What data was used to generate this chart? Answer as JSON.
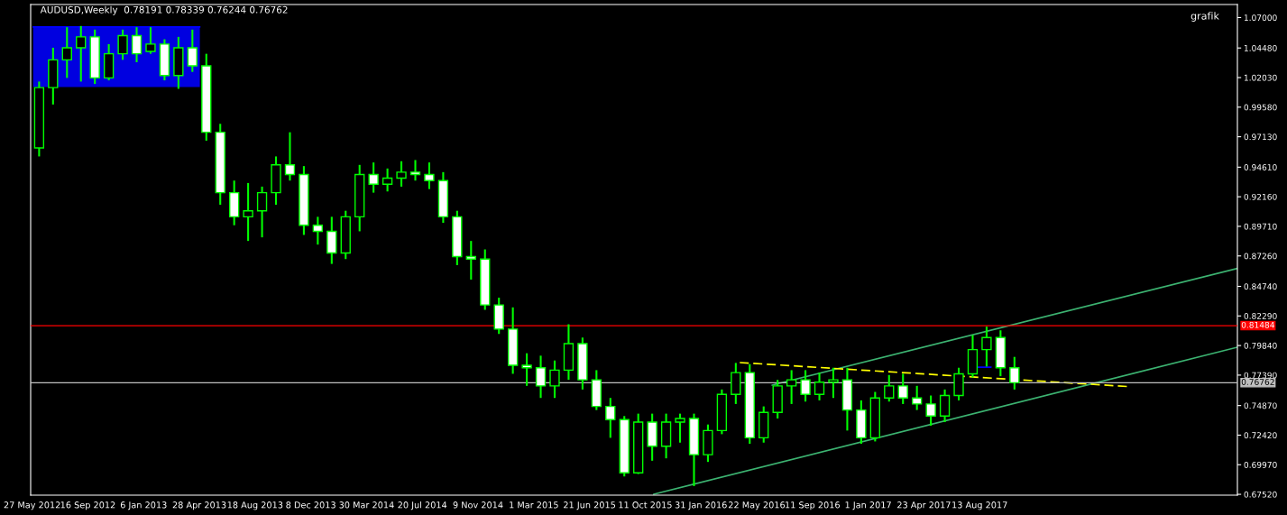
{
  "chart_data": {
    "type": "candlestick",
    "title": "AUDUSD,Weekly  0.78191 0.78339 0.76244 0.76762",
    "annotations": [
      "grafik"
    ],
    "color": "#00ff00",
    "x": [
      "2012-06-10",
      "2012-07-08",
      "2012-08-05",
      "2012-09-02",
      "2012-09-30",
      "2012-10-28",
      "2012-11-25",
      "2012-12-23",
      "2013-01-20",
      "2013-02-17",
      "2013-03-17",
      "2013-04-14",
      "2013-05-12",
      "2013-06-09",
      "2013-07-07",
      "2013-08-04",
      "2013-09-01",
      "2013-09-29",
      "2013-10-27",
      "2013-11-24",
      "2013-12-22",
      "2014-01-19",
      "2014-02-16",
      "2014-03-16",
      "2014-04-13",
      "2014-05-11",
      "2014-06-08",
      "2014-07-06",
      "2014-08-03",
      "2014-08-31",
      "2014-09-28",
      "2014-10-26",
      "2014-11-23",
      "2014-12-21",
      "2015-01-18",
      "2015-02-15",
      "2015-03-15",
      "2015-04-12",
      "2015-05-10",
      "2015-06-07",
      "2015-07-05",
      "2015-08-02",
      "2015-08-30",
      "2015-09-27",
      "2015-10-25",
      "2015-11-22",
      "2015-12-20",
      "2016-01-17",
      "2016-02-14",
      "2016-03-13",
      "2016-04-10",
      "2016-05-08",
      "2016-06-05",
      "2016-07-03",
      "2016-07-31",
      "2016-08-28",
      "2016-09-25",
      "2016-10-23",
      "2016-11-20",
      "2016-12-18",
      "2017-01-15",
      "2017-02-12",
      "2017-03-12",
      "2017-04-09",
      "2017-05-07",
      "2017-06-04",
      "2017-07-02",
      "2017-07-30",
      "2017-08-27",
      "2017-09-24",
      "2017-10-22"
    ],
    "ohlc": [
      [
        0.962,
        1.017,
        0.955,
        1.012
      ],
      [
        1.012,
        1.045,
        0.998,
        1.035
      ],
      [
        1.035,
        1.062,
        1.02,
        1.045
      ],
      [
        1.045,
        1.063,
        1.017,
        1.054
      ],
      [
        1.054,
        1.06,
        1.015,
        1.02
      ],
      [
        1.02,
        1.048,
        1.018,
        1.04
      ],
      [
        1.04,
        1.06,
        1.035,
        1.055
      ],
      [
        1.055,
        1.062,
        1.033,
        1.04
      ],
      [
        1.042,
        1.062,
        1.04,
        1.048
      ],
      [
        1.048,
        1.052,
        1.018,
        1.022
      ],
      [
        1.022,
        1.054,
        1.011,
        1.045
      ],
      [
        1.045,
        1.06,
        1.025,
        1.03
      ],
      [
        1.03,
        1.04,
        0.968,
        0.975
      ],
      [
        0.975,
        0.982,
        0.915,
        0.925
      ],
      [
        0.925,
        0.935,
        0.898,
        0.905
      ],
      [
        0.905,
        0.933,
        0.885,
        0.91
      ],
      [
        0.91,
        0.93,
        0.888,
        0.925
      ],
      [
        0.925,
        0.955,
        0.915,
        0.948
      ],
      [
        0.948,
        0.975,
        0.935,
        0.94
      ],
      [
        0.94,
        0.947,
        0.89,
        0.898
      ],
      [
        0.898,
        0.905,
        0.882,
        0.893
      ],
      [
        0.893,
        0.905,
        0.866,
        0.875
      ],
      [
        0.875,
        0.91,
        0.87,
        0.905
      ],
      [
        0.905,
        0.948,
        0.893,
        0.94
      ],
      [
        0.94,
        0.95,
        0.925,
        0.932
      ],
      [
        0.932,
        0.945,
        0.926,
        0.937
      ],
      [
        0.937,
        0.951,
        0.93,
        0.942
      ],
      [
        0.942,
        0.952,
        0.935,
        0.94
      ],
      [
        0.94,
        0.95,
        0.928,
        0.935
      ],
      [
        0.935,
        0.942,
        0.9,
        0.905
      ],
      [
        0.905,
        0.91,
        0.865,
        0.872
      ],
      [
        0.872,
        0.885,
        0.853,
        0.87
      ],
      [
        0.87,
        0.878,
        0.828,
        0.832
      ],
      [
        0.832,
        0.838,
        0.808,
        0.812
      ],
      [
        0.812,
        0.83,
        0.775,
        0.782
      ],
      [
        0.782,
        0.792,
        0.765,
        0.78
      ],
      [
        0.78,
        0.79,
        0.755,
        0.765
      ],
      [
        0.765,
        0.786,
        0.755,
        0.778
      ],
      [
        0.778,
        0.816,
        0.77,
        0.8
      ],
      [
        0.8,
        0.805,
        0.762,
        0.77
      ],
      [
        0.77,
        0.778,
        0.745,
        0.748
      ],
      [
        0.748,
        0.755,
        0.722,
        0.737
      ],
      [
        0.737,
        0.74,
        0.69,
        0.693
      ],
      [
        0.693,
        0.742,
        0.692,
        0.735
      ],
      [
        0.735,
        0.742,
        0.703,
        0.715
      ],
      [
        0.715,
        0.742,
        0.705,
        0.735
      ],
      [
        0.735,
        0.742,
        0.718,
        0.738
      ],
      [
        0.738,
        0.742,
        0.682,
        0.708
      ],
      [
        0.708,
        0.733,
        0.702,
        0.728
      ],
      [
        0.728,
        0.762,
        0.725,
        0.758
      ],
      [
        0.758,
        0.784,
        0.75,
        0.776
      ],
      [
        0.776,
        0.783,
        0.717,
        0.722
      ],
      [
        0.722,
        0.748,
        0.718,
        0.743
      ],
      [
        0.743,
        0.77,
        0.738,
        0.765
      ],
      [
        0.765,
        0.778,
        0.75,
        0.77
      ],
      [
        0.77,
        0.778,
        0.752,
        0.758
      ],
      [
        0.758,
        0.776,
        0.753,
        0.768
      ],
      [
        0.768,
        0.78,
        0.755,
        0.77
      ],
      [
        0.77,
        0.78,
        0.728,
        0.745
      ],
      [
        0.745,
        0.753,
        0.717,
        0.722
      ],
      [
        0.722,
        0.76,
        0.719,
        0.755
      ],
      [
        0.755,
        0.774,
        0.752,
        0.765
      ],
      [
        0.765,
        0.775,
        0.75,
        0.755
      ],
      [
        0.755,
        0.765,
        0.745,
        0.75
      ],
      [
        0.75,
        0.757,
        0.732,
        0.74
      ],
      [
        0.74,
        0.762,
        0.735,
        0.757
      ],
      [
        0.757,
        0.78,
        0.753,
        0.775
      ],
      [
        0.775,
        0.807,
        0.772,
        0.795
      ],
      [
        0.795,
        0.814,
        0.781,
        0.805
      ],
      [
        0.805,
        0.811,
        0.773,
        0.78
      ],
      [
        0.78,
        0.789,
        0.762,
        0.7676
      ]
    ],
    "series": [
      {
        "type": "line",
        "x": [
          "2012-05-29",
          "2013-04-29"
        ],
        "values": [
          1.0622,
          1.0622
        ],
        "lower": [
          1.0125,
          1.0125
        ],
        "upper": [
          1.0622,
          1.0622
        ],
        "color": "#0000ff",
        "line_style": "solid"
      },
      {
        "type": "line",
        "x": [
          "2015-10-28",
          "2019-01-13"
        ],
        "values": [
          0.6752,
          0.797
        ],
        "color": "#3cb371",
        "line_style": "solid"
      },
      {
        "type": "line",
        "x": [
          "2016-06-22",
          "2019-01-13"
        ],
        "values": [
          0.7656,
          0.8623
        ],
        "color": "#3cb371",
        "line_style": "solid"
      },
      {
        "type": "line",
        "x": [
          "2016-04-18",
          "2018-06-05"
        ],
        "values": [
          0.7843,
          0.7645
        ],
        "color": "#ffff00",
        "line_style": "dashed"
      },
      {
        "type": "line",
        "x": [
          "2017-08-09",
          "2017-09-05"
        ],
        "values": [
          0.7805,
          0.7805
        ],
        "color": "#0000ff",
        "line_style": "solid"
      }
    ],
    "ref_lines": [
      {
        "axis": "y",
        "value": 0.81484,
        "label": "0.81484",
        "color": "#ff0000"
      },
      {
        "axis": "y",
        "value": 0.76762,
        "label": "0.76762",
        "color": "#c0c0c0"
      }
    ],
    "xlim": [
      "2012-05-24",
      "2019-01-13"
    ],
    "xticks": [
      {
        "value": "2012-05-27",
        "label": "27 May 2012"
      },
      {
        "value": "2012-09-16",
        "label": "16 Sep 2012"
      },
      {
        "value": "2013-01-06",
        "label": "6 Jan 2013"
      },
      {
        "value": "2013-04-28",
        "label": "28 Apr 2013"
      },
      {
        "value": "2013-08-18",
        "label": "18 Aug 2013"
      },
      {
        "value": "2013-12-08",
        "label": "8 Dec 2013"
      },
      {
        "value": "2014-03-30",
        "label": "30 Mar 2014"
      },
      {
        "value": "2014-07-20",
        "label": "20 Jul 2014"
      },
      {
        "value": "2014-11-09",
        "label": "9 Nov 2014"
      },
      {
        "value": "2015-03-01",
        "label": "1 Mar 2015"
      },
      {
        "value": "2015-06-21",
        "label": "21 Jun 2015"
      },
      {
        "value": "2015-10-11",
        "label": "11 Oct 2015"
      },
      {
        "value": "2016-01-31",
        "label": "31 Jan 2016"
      },
      {
        "value": "2016-05-22",
        "label": "22 May 2016"
      },
      {
        "value": "2016-09-11",
        "label": "11 Sep 2016"
      },
      {
        "value": "2017-01-01",
        "label": "1 Jan 2017"
      },
      {
        "value": "2017-04-23",
        "label": "23 Apr 2017"
      },
      {
        "value": "2017-08-13",
        "label": "13 Aug 2017"
      }
    ],
    "ylim": [
      0.6745,
      1.0808
    ],
    "yticks": [
      {
        "value": 0.6752,
        "label": "0.67520"
      },
      {
        "value": 0.6997,
        "label": "0.69970"
      },
      {
        "value": 0.7242,
        "label": "0.72420"
      },
      {
        "value": 0.7487,
        "label": "0.74870"
      },
      {
        "value": 0.7739,
        "label": "0.77390"
      },
      {
        "value": 0.7984,
        "label": "0.79840"
      },
      {
        "value": 0.8229,
        "label": "0.82290"
      },
      {
        "value": 0.8474,
        "label": "0.84740"
      },
      {
        "value": 0.8726,
        "label": "0.87260"
      },
      {
        "value": 0.8971,
        "label": "0.89710"
      },
      {
        "value": 0.9216,
        "label": "0.92160"
      },
      {
        "value": 0.9461,
        "label": "0.94610"
      },
      {
        "value": 0.9713,
        "label": "0.97130"
      },
      {
        "value": 0.9958,
        "label": "0.99580"
      },
      {
        "value": 1.0203,
        "label": "1.02030"
      },
      {
        "value": 1.0448,
        "label": "1.04480"
      },
      {
        "value": 1.07,
        "label": "1.07000"
      }
    ],
    "grid": false,
    "legend": false
  }
}
